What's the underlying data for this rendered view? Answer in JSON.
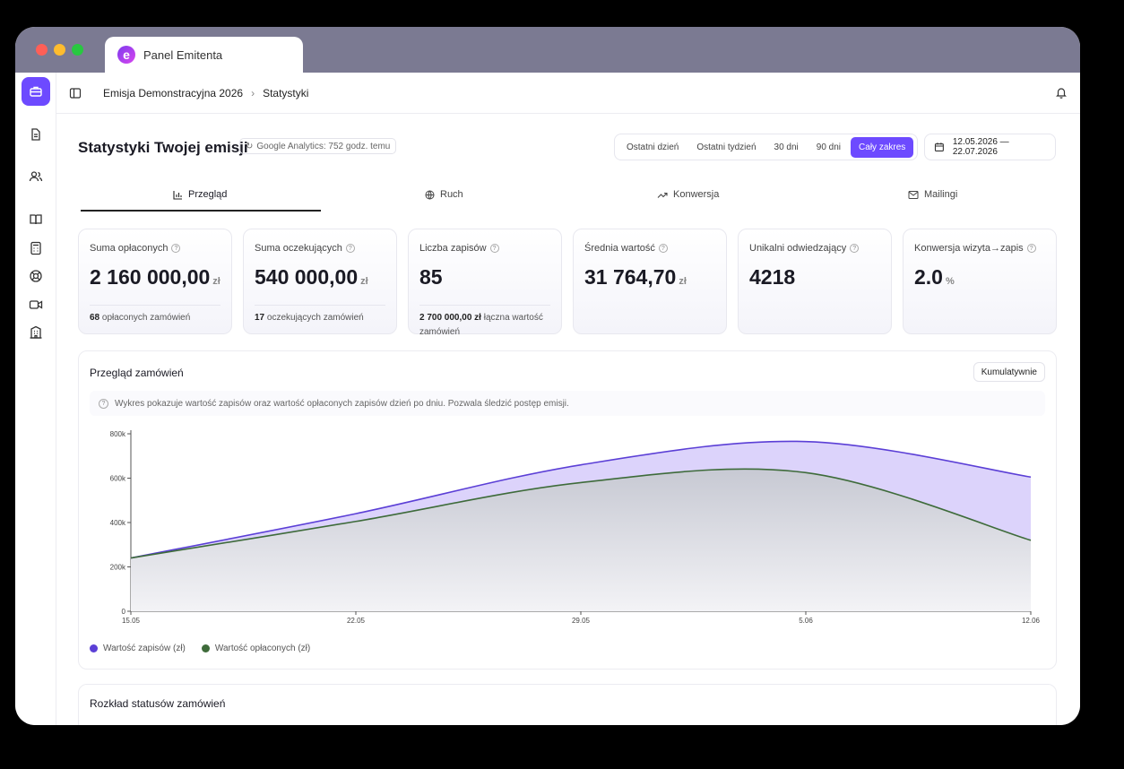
{
  "browser": {
    "tab_title": "Panel Emitenta",
    "logo_letter": "e"
  },
  "sidebar": {
    "items": [
      {
        "icon": "briefcase-icon",
        "active": true
      },
      {
        "icon": "document-icon",
        "active": false
      },
      {
        "icon": "users-icon",
        "active": false
      },
      {
        "icon": "book-icon",
        "active": false
      },
      {
        "icon": "calculator-icon",
        "active": false
      },
      {
        "icon": "lifebuoy-icon",
        "active": false
      },
      {
        "icon": "video-icon",
        "active": false
      },
      {
        "icon": "building-icon",
        "active": false
      }
    ]
  },
  "breadcrumb": {
    "items": [
      "Emisja Demonstracyjna 2026",
      "Statystyki"
    ]
  },
  "header": {
    "title": "Statystyki Twojej emisji",
    "ga_badge": "Google Analytics: 752 godz. temu",
    "ranges": [
      "Ostatni dzień",
      "Ostatni tydzień",
      "30 dni",
      "90 dni",
      "Cały zakres"
    ],
    "active_range": "Cały zakres",
    "date_range": "12.05.2026 — 22.07.2026"
  },
  "tabs": [
    "Przegląd",
    "Ruch",
    "Konwersja",
    "Mailingi"
  ],
  "active_tab": "Przegląd",
  "cards": [
    {
      "label": "Suma opłaconych",
      "value": "2 160 000,00",
      "unit": "zł",
      "note_bold": "68",
      "note": " opłaconych zamówień"
    },
    {
      "label": "Suma oczekujących",
      "value": "540 000,00",
      "unit": "zł",
      "note_bold": "17",
      "note": " oczekujących zamówień"
    },
    {
      "label": "Liczba zapisów",
      "value": "85",
      "unit": "",
      "note_bold": "2 700 000,00 zł",
      "note": " łączna wartość zamówień"
    },
    {
      "label": "Średnia wartość",
      "value": "31 764,70",
      "unit": "zł",
      "note_bold": "",
      "note": ""
    },
    {
      "label": "Unikalni odwiedzający",
      "value": "4218",
      "unit": "",
      "note_bold": "",
      "note": ""
    },
    {
      "label": "Konwersja wizyta→zapis",
      "value": "2.0",
      "unit": "%",
      "note_bold": "",
      "note": ""
    }
  ],
  "chart_section": {
    "title": "Przegląd zamówień",
    "toggle_label": "Kumulatywnie",
    "info": "Wykres pokazuje wartość zapisów oraz wartość opłaconych zapisów dzień po dniu. Pozwala śledzić postęp emisji."
  },
  "chart_data": {
    "type": "area",
    "x": [
      "15.05",
      "22.05",
      "29.05",
      "5.06",
      "12.06"
    ],
    "ylim": [
      0,
      800000
    ],
    "yticks": [
      "0",
      "200k",
      "400k",
      "600k",
      "800k"
    ],
    "series": [
      {
        "name": "Wartość zapisów (zł)",
        "color": "#5b3fd6",
        "fill": "#dcd3fb",
        "values": [
          240000,
          440000,
          660000,
          765000,
          605000
        ]
      },
      {
        "name": "Wartość opłaconych (zł)",
        "color": "#3e6b3a",
        "fill": "#e4e5ea",
        "values": [
          240000,
          405000,
          580000,
          625000,
          320000
        ]
      }
    ],
    "grid": false,
    "legend_position": "bottom-left"
  },
  "status_section": {
    "title": "Rozkład statusów zamówień"
  },
  "colors": {
    "accent": "#6d4aff",
    "titlebar": "#7b7a92"
  }
}
